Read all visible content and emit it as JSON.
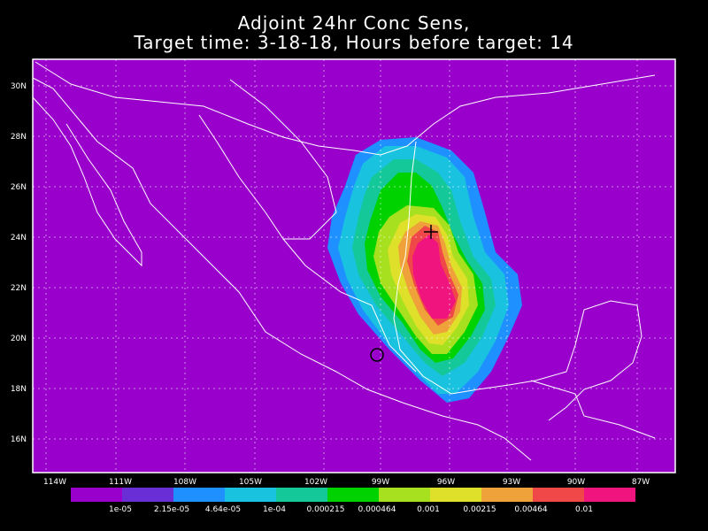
{
  "title_line1": "Adjoint 24hr Conc Sens,",
  "title_line2": "Target time: 3-18-18, Hours before target: 14",
  "lat_labels": [
    "30N",
    "28N",
    "26N",
    "24N",
    "22N",
    "20N",
    "18N",
    "16N"
  ],
  "lon_labels": [
    "114W",
    "111W",
    "108W",
    "105W",
    "102W",
    "99W",
    "96W",
    "93W",
    "90W",
    "87W"
  ],
  "colorbar": {
    "colors": [
      "#9900cc",
      "#6a2ed6",
      "#1e90ff",
      "#19c3e0",
      "#14c89a",
      "#00d200",
      "#a6e01e",
      "#dfe02a",
      "#f0a23a",
      "#f04848",
      "#f0147f"
    ],
    "labels": [
      "1e-05",
      "2.15e-05",
      "4.64e-05",
      "1e-04",
      "0.000215",
      "0.000464",
      "0.001",
      "0.00215",
      "0.00464",
      "0.01"
    ]
  },
  "markers": {
    "target": "plus-marker",
    "source": "circle-marker"
  }
}
